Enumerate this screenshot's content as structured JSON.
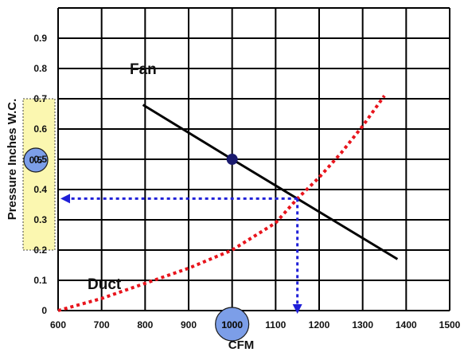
{
  "chart_data": {
    "type": "line",
    "title": "",
    "xlabel": "CFM",
    "ylabel": "Pressure Inches W.C.",
    "xlim": [
      600,
      1500
    ],
    "ylim": [
      0,
      1.0
    ],
    "grid": true,
    "x_ticks": [
      "600",
      "700",
      "800",
      "900",
      "1000",
      "1100",
      "1200",
      "1300",
      "1400",
      "1500"
    ],
    "y_ticks": [
      "0",
      "0.1",
      "0.2",
      "0.3",
      "0.4",
      "0.5",
      "0.6",
      "0.7",
      "0.8",
      "0.9"
    ],
    "series": [
      {
        "name": "Fan",
        "style": "solid",
        "color": "#000000",
        "x": [
          795,
          1000,
          1380
        ],
        "y": [
          0.68,
          0.5,
          0.17
        ]
      },
      {
        "name": "Duct",
        "style": "dotted",
        "color": "#e8141c",
        "x": [
          600,
          700,
          800,
          900,
          1000,
          1100,
          1150,
          1200,
          1250,
          1300,
          1350
        ],
        "y": [
          0.0,
          0.04,
          0.09,
          0.14,
          0.2,
          0.29,
          0.37,
          0.44,
          0.52,
          0.61,
          0.71
        ]
      }
    ],
    "operating_point": {
      "x": 1000,
      "y": 0.5,
      "color": "#1a1a6e"
    },
    "intersection": {
      "x": 1150,
      "y": 0.37,
      "arrow_color": "#1f1fd8"
    },
    "highlights": {
      "y_band": {
        "from": 0.2,
        "to": 0.7,
        "color": "#fbf7b0"
      },
      "y_marker_label": "0.5",
      "x_marker_label": "1000",
      "marker_color": "#7c9ee8"
    }
  }
}
